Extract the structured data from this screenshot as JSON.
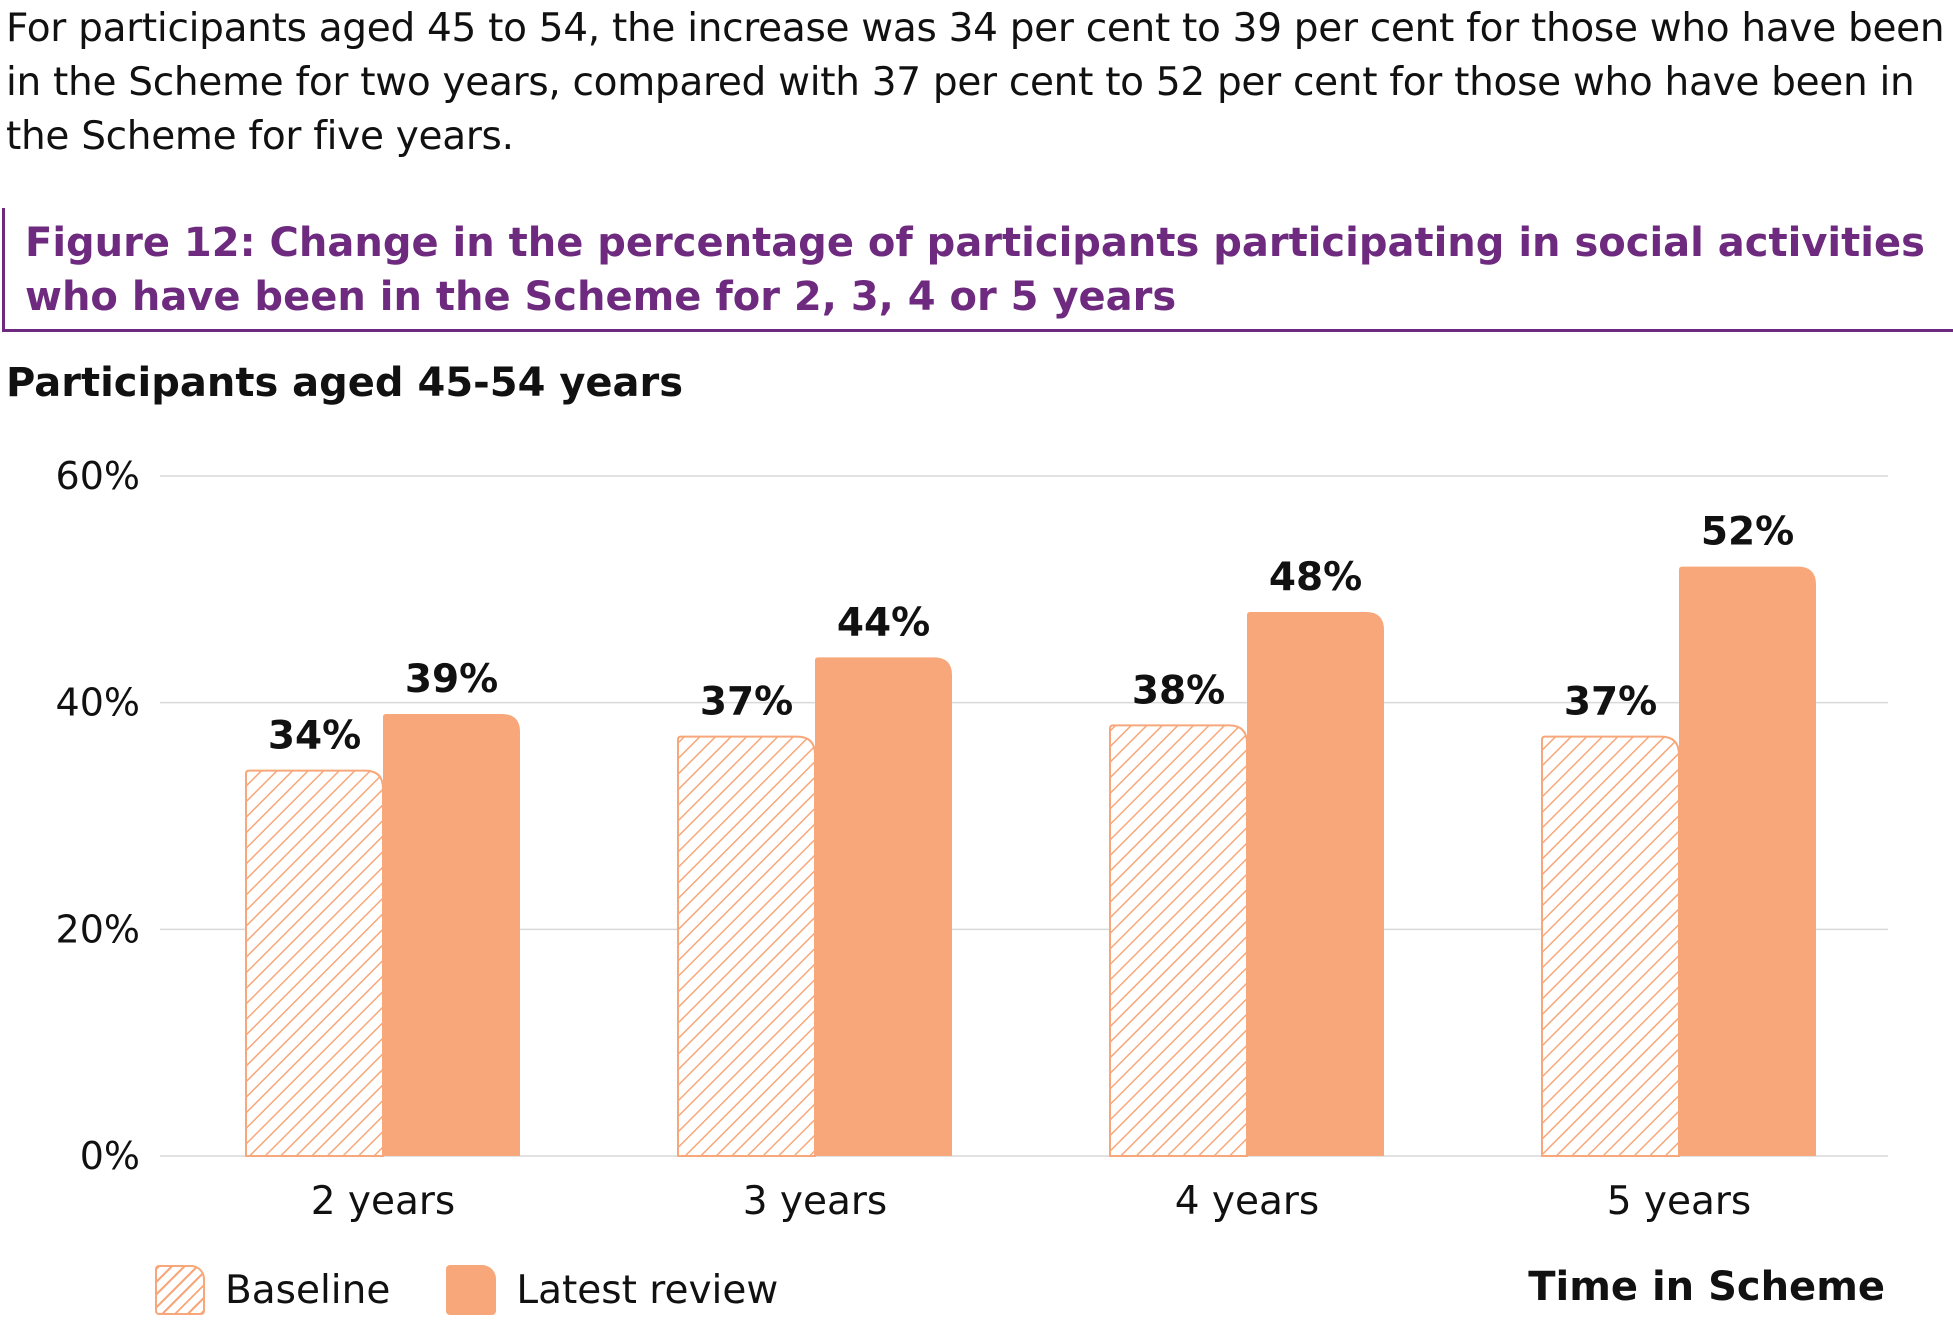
{
  "intro_text": "For participants aged 45 to 54, the increase was 34 per cent to 39 per cent for those who have been in the Scheme for two years, compared with 37 per cent to 52 per cent for those who have been in the Scheme for five years.",
  "figure_title": "Figure 12: Change in the percentage of participants participating in social activities who have been in the Scheme for 2, 3, 4 or 5 years",
  "colors": {
    "accent": "#6e2a7e",
    "bar": "#f7a77a",
    "grid": "#d9d9d9"
  },
  "chart_data": {
    "type": "bar",
    "title": "Participants aged 45-54 years",
    "xlabel": "Time in Scheme",
    "ylabel": "",
    "categories": [
      "2 years",
      "3 years",
      "4 years",
      "5 years"
    ],
    "series": [
      {
        "name": "Baseline",
        "values": [
          34,
          37,
          38,
          37
        ],
        "labels": [
          "34%",
          "37%",
          "38%",
          "37%"
        ],
        "pattern": "hatched"
      },
      {
        "name": "Latest review",
        "values": [
          39,
          44,
          48,
          52
        ],
        "labels": [
          "39%",
          "44%",
          "48%",
          "52%"
        ],
        "pattern": "solid"
      }
    ],
    "ylim": [
      0,
      60
    ],
    "yticks": [
      0,
      20,
      40,
      60
    ],
    "ytick_labels": [
      "0%",
      "20%",
      "40%",
      "60%"
    ],
    "grid": true,
    "legend_position": "bottom-left"
  }
}
